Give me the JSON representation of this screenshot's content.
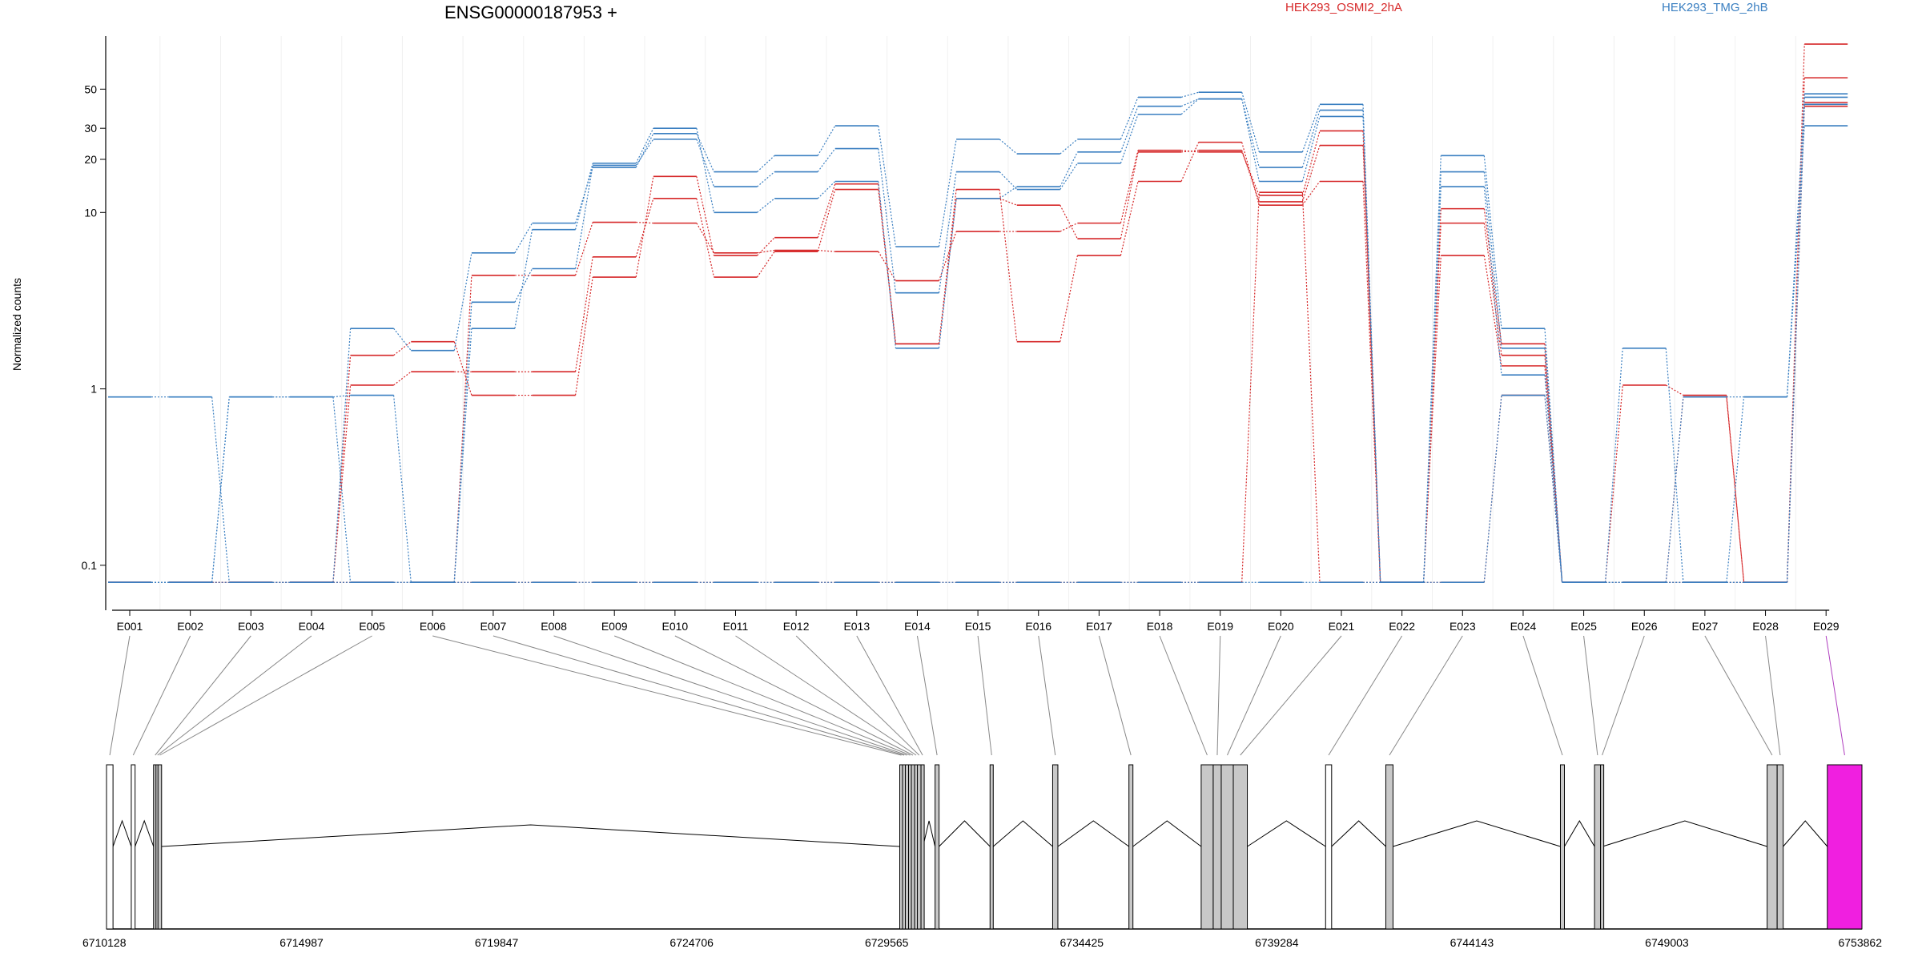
{
  "chart_data": {
    "type": "line",
    "title": "ENSG00000187953 +",
    "ylabel": "Normalized counts",
    "yscale": "log",
    "ylim": [
      0.07,
      100
    ],
    "yticks": [
      0.1,
      1,
      10,
      20,
      30,
      50
    ],
    "yticklabels": [
      "0.1",
      "1",
      "10",
      "20",
      "30",
      "50"
    ],
    "grid": false,
    "legend": [
      {
        "name": "HEK293_OSMI2_2hA",
        "color": "#d62728"
      },
      {
        "name": "HEK293_TMG_2hB",
        "color": "#3a7fc1"
      }
    ],
    "categories": [
      "E001",
      "E002",
      "E003",
      "E004",
      "E005",
      "E006",
      "E007",
      "E008",
      "E009",
      "E010",
      "E011",
      "E012",
      "E013",
      "E014",
      "E015",
      "E016",
      "E017",
      "E018",
      "E019",
      "E020",
      "E021",
      "E022",
      "E023",
      "E024",
      "E025",
      "E026",
      "E027",
      "E028",
      "E029"
    ],
    "series": [
      {
        "group": "HEK293_OSMI2_2hA",
        "color": "#d62728",
        "values": [
          0.08,
          0.08,
          0.08,
          0.08,
          1.55,
          1.85,
          0.92,
          0.92,
          4.3,
          16,
          5.7,
          7.2,
          14.5,
          1.8,
          12,
          11,
          7.1,
          22,
          22.5,
          11.5,
          24,
          0.08,
          5.7,
          1.35,
          0.08,
          1.05,
          0.92,
          0.08,
          42
        ]
      },
      {
        "group": "HEK293_OSMI2_2hA",
        "color": "#d62728",
        "values": [
          0.08,
          0.08,
          0.08,
          0.08,
          1.05,
          1.25,
          1.25,
          1.25,
          5.6,
          12,
          4.3,
          6.0,
          13.5,
          1.8,
          13.5,
          1.85,
          5.7,
          15,
          25,
          11,
          15,
          0.08,
          8.7,
          1.55,
          0.08,
          0.08,
          0.9,
          0.08,
          58
        ]
      },
      {
        "group": "HEK293_OSMI2_2hA",
        "color": "#d62728",
        "values": [
          0.08,
          0.08,
          0.08,
          0.08,
          0.08,
          0.08,
          4.4,
          4.4,
          8.8,
          8.7,
          5.9,
          6.1,
          6.0,
          4.1,
          7.8,
          7.8,
          8.7,
          22.5,
          22,
          12.5,
          29,
          0.08,
          10.5,
          1.8,
          0.08,
          0.08,
          0.08,
          0.08,
          90
        ]
      },
      {
        "group": "HEK293_OSMI2_2hA",
        "color": "#d62728",
        "values": [
          0.08,
          0.08,
          0.08,
          0.08,
          0.08,
          0.08,
          0.08,
          0.08,
          0.08,
          0.08,
          0.08,
          0.08,
          0.08,
          0.08,
          0.08,
          0.08,
          0.08,
          0.08,
          0.08,
          13,
          0.08,
          0.08,
          0.08,
          0.92,
          0.08,
          0.08,
          0.08,
          0.08,
          40
        ]
      },
      {
        "group": "HEK293_TMG_2hB",
        "color": "#3a7fc1",
        "values": [
          0.9,
          0.9,
          0.08,
          0.08,
          2.2,
          1.65,
          5.9,
          8.7,
          18,
          28,
          17,
          21,
          31,
          6.4,
          26,
          21.5,
          26,
          45,
          48,
          22,
          41,
          0.08,
          21,
          2.2,
          0.08,
          1.7,
          0.08,
          0.08,
          47
        ]
      },
      {
        "group": "HEK293_TMG_2hB",
        "color": "#3a7fc1",
        "values": [
          0.08,
          0.08,
          0.9,
          0.9,
          0.08,
          0.08,
          3.1,
          4.8,
          18.5,
          26,
          14,
          17,
          23,
          3.5,
          17,
          13.5,
          19,
          36,
          44,
          15,
          35,
          0.08,
          14,
          1.2,
          0.08,
          0.08,
          0.9,
          0.9,
          31
        ]
      },
      {
        "group": "HEK293_TMG_2hB",
        "color": "#3a7fc1",
        "values": [
          0.08,
          0.08,
          0.9,
          0.9,
          0.92,
          0.08,
          2.2,
          8.0,
          19,
          30,
          10,
          12,
          15,
          1.7,
          12,
          14,
          22,
          40,
          44,
          18,
          38,
          0.08,
          17,
          1.7,
          0.08,
          0.08,
          0.08,
          0.9,
          45
        ]
      },
      {
        "group": "HEK293_TMG_2hB",
        "color": "#3a7fc1",
        "values": [
          0.08,
          0.08,
          0.08,
          0.08,
          0.08,
          0.08,
          0.08,
          0.08,
          0.08,
          0.08,
          0.08,
          0.08,
          0.08,
          0.08,
          0.08,
          0.08,
          0.08,
          0.08,
          0.08,
          0.08,
          0.08,
          0.08,
          0.08,
          0.92,
          0.08,
          0.08,
          0.08,
          0.08,
          41
        ]
      }
    ],
    "gene_model": {
      "coordinate_labels": [
        "6710128",
        "6714987",
        "6719847",
        "6724706",
        "6729565",
        "6734425",
        "6739284",
        "6744143",
        "6749003",
        "6753862"
      ],
      "genomic_range": [
        6710128,
        6753862
      ],
      "exons": [
        {
          "id": "E001",
          "start": 6710128,
          "end": 6710290,
          "fill": "#ffffff"
        },
        {
          "id": "E002",
          "start": 6710745,
          "end": 6710840,
          "fill": "#ffffff"
        },
        {
          "id": "E003",
          "start": 6711300,
          "end": 6711360,
          "fill": "#c8c8c8"
        },
        {
          "id": "E004",
          "start": 6711360,
          "end": 6711410,
          "fill": "#c8c8c8"
        },
        {
          "id": "E005",
          "start": 6711410,
          "end": 6711500,
          "fill": "#c8c8c8"
        },
        {
          "id": "E006",
          "start": 6729890,
          "end": 6729960,
          "fill": "#c8c8c8"
        },
        {
          "id": "E007",
          "start": 6729960,
          "end": 6730030,
          "fill": "#c8c8c8"
        },
        {
          "id": "E008",
          "start": 6730030,
          "end": 6730110,
          "fill": "#c8c8c8"
        },
        {
          "id": "E009",
          "start": 6730110,
          "end": 6730180,
          "fill": "#c8c8c8"
        },
        {
          "id": "E010",
          "start": 6730180,
          "end": 6730260,
          "fill": "#c8c8c8"
        },
        {
          "id": "E011",
          "start": 6730260,
          "end": 6730330,
          "fill": "#c8c8c8"
        },
        {
          "id": "E012",
          "start": 6730330,
          "end": 6730420,
          "fill": "#c8c8c8"
        },
        {
          "id": "E013",
          "start": 6730420,
          "end": 6730470,
          "fill": "#c8c8c8"
        },
        {
          "id": "E014",
          "start": 6730770,
          "end": 6730870,
          "fill": "#c8c8c8"
        },
        {
          "id": "E015",
          "start": 6732140,
          "end": 6732220,
          "fill": "#c8c8c8"
        },
        {
          "id": "E016",
          "start": 6733700,
          "end": 6733830,
          "fill": "#c8c8c8"
        },
        {
          "id": "E017",
          "start": 6735600,
          "end": 6735700,
          "fill": "#c8c8c8"
        },
        {
          "id": "E018",
          "start": 6737400,
          "end": 6737700,
          "fill": "#c8c8c8"
        },
        {
          "id": "E019",
          "start": 6737700,
          "end": 6737900,
          "fill": "#c8c8c8"
        },
        {
          "id": "E020",
          "start": 6737900,
          "end": 6738200,
          "fill": "#c8c8c8"
        },
        {
          "id": "E021",
          "start": 6738200,
          "end": 6738550,
          "fill": "#c8c8c8"
        },
        {
          "id": "E022",
          "start": 6740500,
          "end": 6740650,
          "fill": "#ffffff"
        },
        {
          "id": "E023",
          "start": 6742000,
          "end": 6742180,
          "fill": "#c8c8c8"
        },
        {
          "id": "E024",
          "start": 6746350,
          "end": 6746450,
          "fill": "#c8c8c8"
        },
        {
          "id": "E025",
          "start": 6747200,
          "end": 6747350,
          "fill": "#c8c8c8"
        },
        {
          "id": "E026",
          "start": 6747350,
          "end": 6747400,
          "fill": "#c8c8c8"
        },
        {
          "id": "E027",
          "start": 6751500,
          "end": 6751750,
          "fill": "#c8c8c8"
        },
        {
          "id": "E028",
          "start": 6751750,
          "end": 6751900,
          "fill": "#c8c8c8"
        },
        {
          "id": "E029",
          "start": 6753000,
          "end": 6753862,
          "fill": "#f01fe0"
        }
      ]
    }
  }
}
